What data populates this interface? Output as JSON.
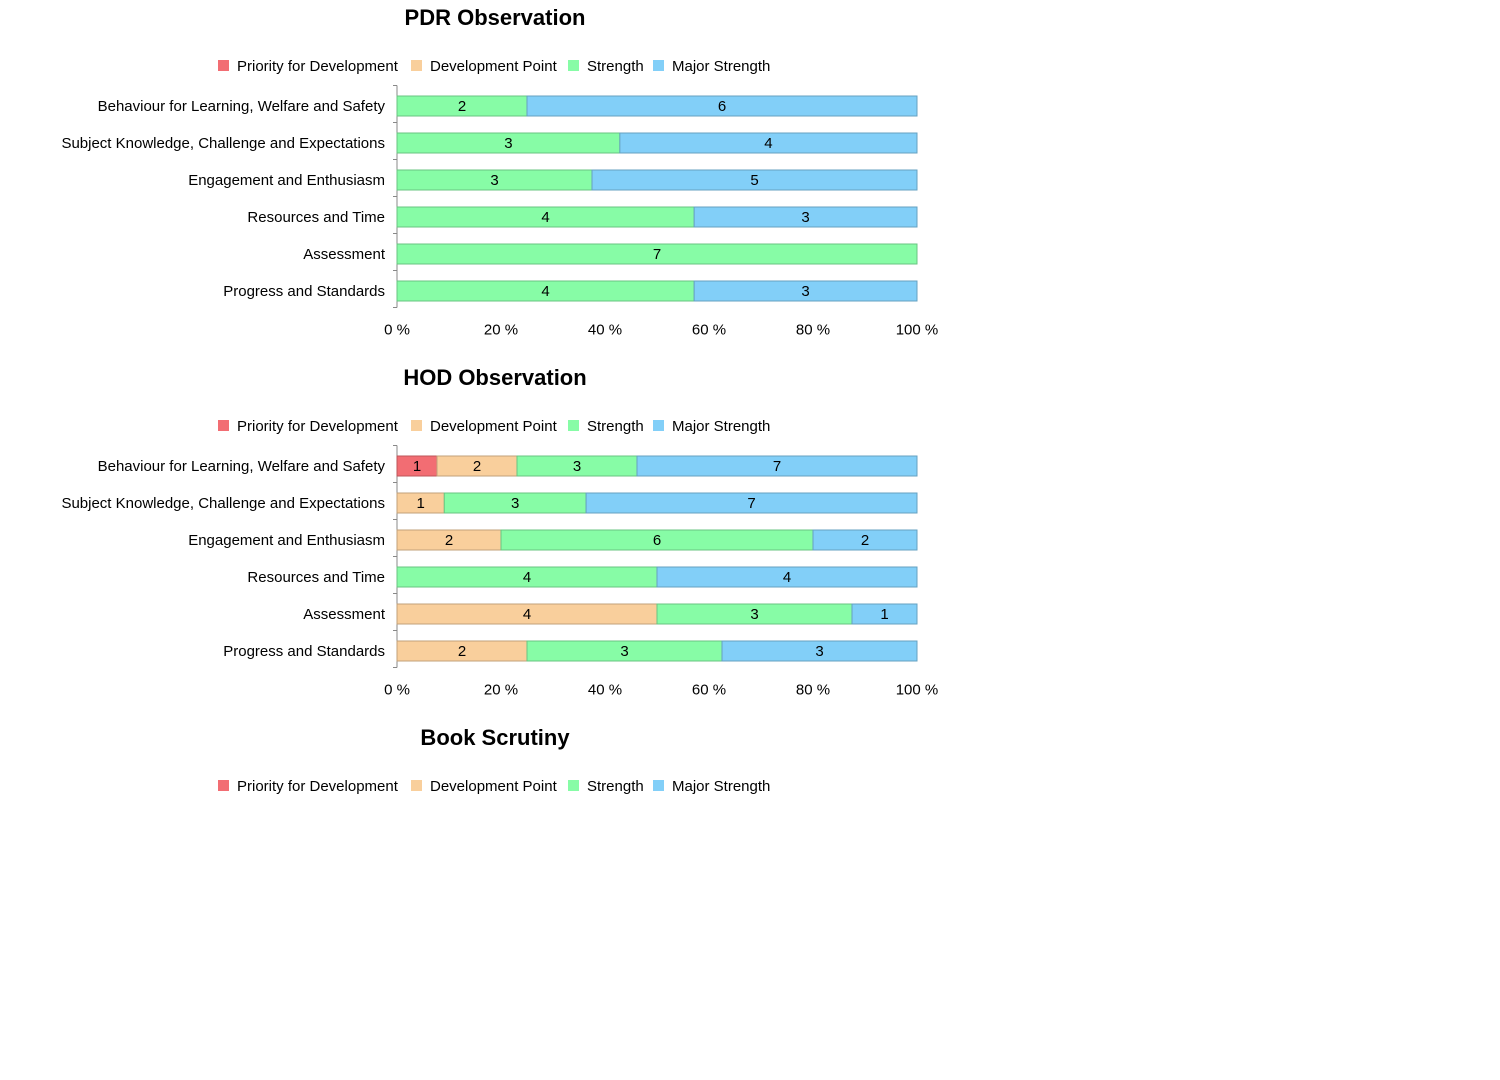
{
  "colors": {
    "Priority for Development": "#f26d73",
    "Development Point": "#f9cf9c",
    "Strength": "#87fca6",
    "Major Strength": "#82cff8"
  },
  "chart_data": [
    {
      "type": "bar",
      "orientation": "horizontal",
      "stacked": "percent",
      "title": "PDR Observation",
      "categories": [
        "Behaviour for Learning, Welfare and Safety",
        "Subject Knowledge, Challenge and Expectations",
        "Engagement and Enthusiasm",
        "Resources and Time",
        "Assessment",
        "Progress and Standards"
      ],
      "series": [
        {
          "name": "Priority for Development",
          "values": [
            0,
            0,
            0,
            0,
            0,
            0
          ]
        },
        {
          "name": "Development Point",
          "values": [
            0,
            0,
            0,
            0,
            0,
            0
          ]
        },
        {
          "name": "Strength",
          "values": [
            2,
            3,
            3,
            4,
            7,
            4
          ]
        },
        {
          "name": "Major Strength",
          "values": [
            6,
            4,
            5,
            3,
            0,
            3
          ]
        }
      ],
      "xticks": [
        "0 %",
        "20 %",
        "40 %",
        "60 %",
        "80 %",
        "100 %"
      ],
      "xlim": [
        0,
        100
      ],
      "legend": "top"
    },
    {
      "type": "bar",
      "orientation": "horizontal",
      "stacked": "percent",
      "title": "HOD Observation",
      "categories": [
        "Behaviour for Learning, Welfare and Safety",
        "Subject Knowledge, Challenge and Expectations",
        "Engagement and Enthusiasm",
        "Resources and Time",
        "Assessment",
        "Progress and Standards"
      ],
      "series": [
        {
          "name": "Priority for Development",
          "values": [
            1,
            0,
            0,
            0,
            0,
            0
          ]
        },
        {
          "name": "Development Point",
          "values": [
            2,
            1,
            2,
            0,
            4,
            2
          ]
        },
        {
          "name": "Strength",
          "values": [
            3,
            3,
            6,
            4,
            3,
            3
          ]
        },
        {
          "name": "Major Strength",
          "values": [
            7,
            7,
            2,
            4,
            1,
            3
          ]
        }
      ],
      "xticks": [
        "0 %",
        "20 %",
        "40 %",
        "60 %",
        "80 %",
        "100 %"
      ],
      "xlim": [
        0,
        100
      ],
      "legend": "top"
    },
    {
      "type": "bar",
      "orientation": "horizontal",
      "stacked": "percent",
      "title": "Book Scrutiny",
      "categories": [],
      "series": [
        {
          "name": "Priority for Development",
          "values": []
        },
        {
          "name": "Development Point",
          "values": []
        },
        {
          "name": "Strength",
          "values": []
        },
        {
          "name": "Major Strength",
          "values": []
        }
      ],
      "xticks": [],
      "xlim": [
        0,
        100
      ],
      "legend": "top"
    }
  ]
}
